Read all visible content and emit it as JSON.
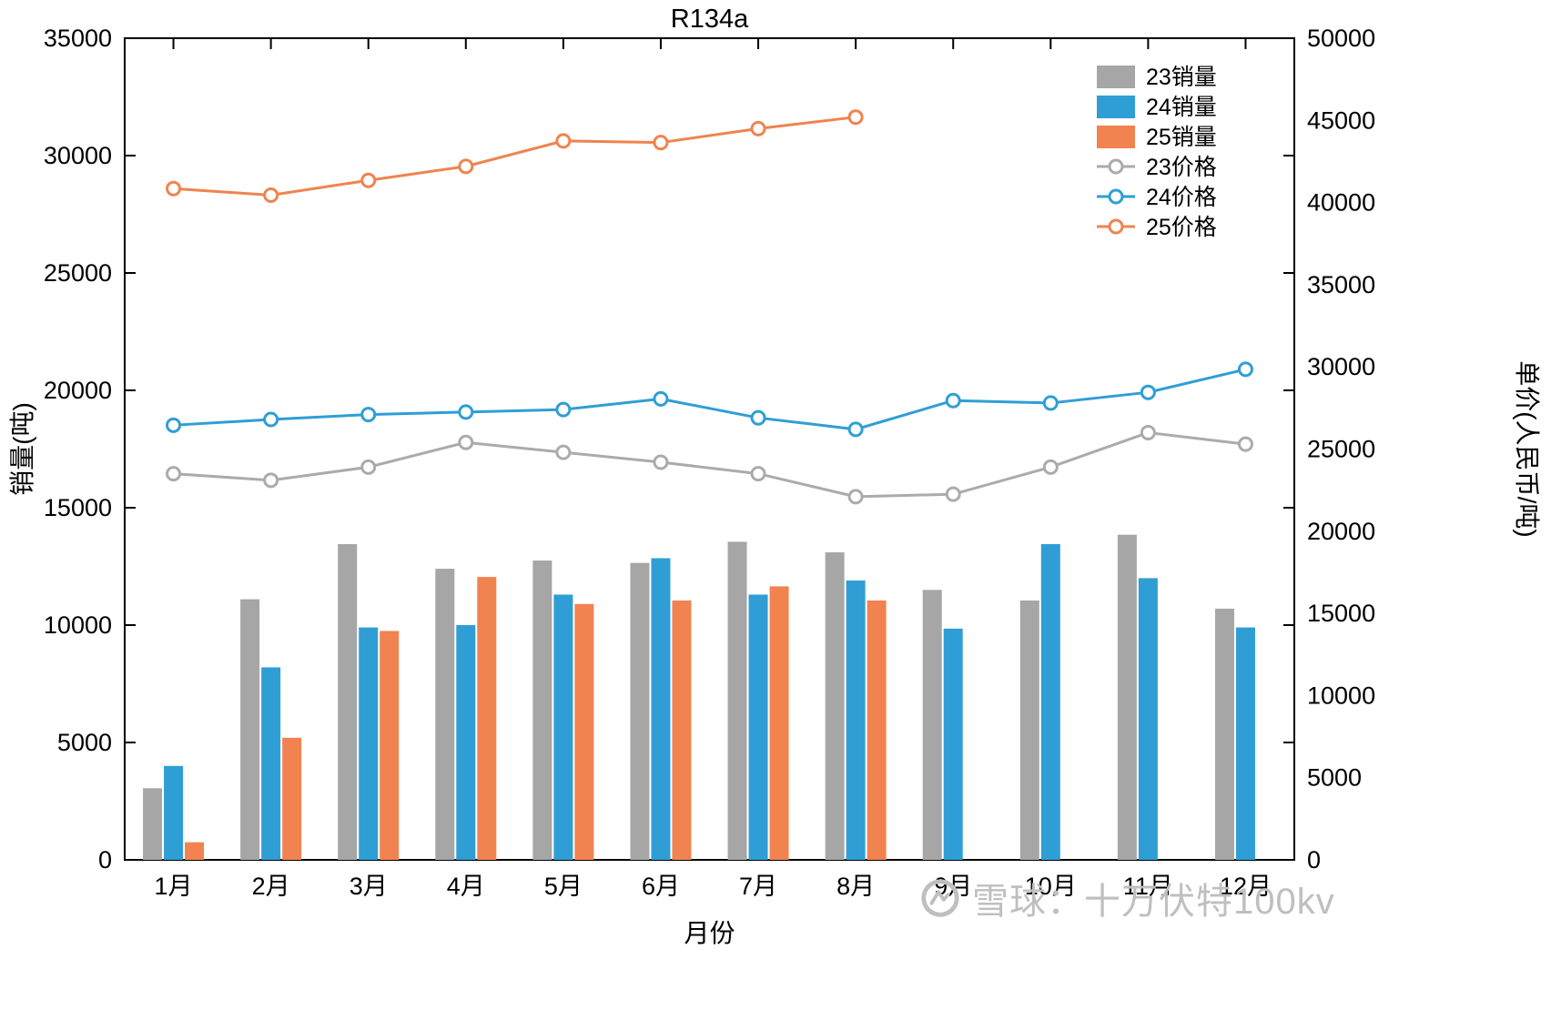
{
  "title": "R134a",
  "watermark": {
    "text": "雪球：十万伏特100kv"
  },
  "chart_data": {
    "type": "bar",
    "title": "R134a",
    "xlabel": "月份",
    "ylabel_left": "销量(吨)",
    "ylabel_right": "单价(人民币/吨)",
    "grid": false,
    "legend_position": "top-right-inside",
    "left_axis": {
      "min": 0,
      "max": 35000,
      "step": 5000
    },
    "right_axis": {
      "min": 0,
      "max": 50000,
      "step": 5000
    },
    "categories": [
      "1月",
      "2月",
      "3月",
      "4月",
      "5月",
      "6月",
      "7月",
      "8月",
      "9月",
      "10月",
      "11月",
      "12月"
    ],
    "bar_series": [
      {
        "name": "23销量",
        "color": "#a6a6a6",
        "values": [
          3050,
          11100,
          13450,
          12400,
          12750,
          12650,
          13550,
          13100,
          11500,
          11050,
          13850,
          10700
        ]
      },
      {
        "name": "24销量",
        "color": "#2f9ed5",
        "values": [
          4000,
          8200,
          9900,
          10000,
          11300,
          12850,
          11300,
          11900,
          9850,
          13450,
          12000,
          9900
        ]
      },
      {
        "name": "25销量",
        "color": "#f0834f",
        "values": [
          750,
          5200,
          9750,
          12050,
          10900,
          11050,
          11650,
          11050,
          null,
          null,
          null,
          null
        ]
      }
    ],
    "line_series": [
      {
        "name": "23价格",
        "color": "#ababab",
        "values": [
          23500,
          23100,
          23900,
          25400,
          24800,
          24200,
          23500,
          22100,
          22250,
          23900,
          26000,
          25300
        ]
      },
      {
        "name": "24价格",
        "color": "#2f9ed5",
        "values": [
          26450,
          26800,
          27100,
          27250,
          27400,
          28050,
          26900,
          26200,
          27950,
          27800,
          28450,
          29850
        ]
      },
      {
        "name": "25价格",
        "color": "#f0834f",
        "values": [
          40850,
          40450,
          41350,
          42200,
          43750,
          43650,
          44500,
          45200,
          null,
          null,
          null,
          null
        ]
      }
    ]
  }
}
